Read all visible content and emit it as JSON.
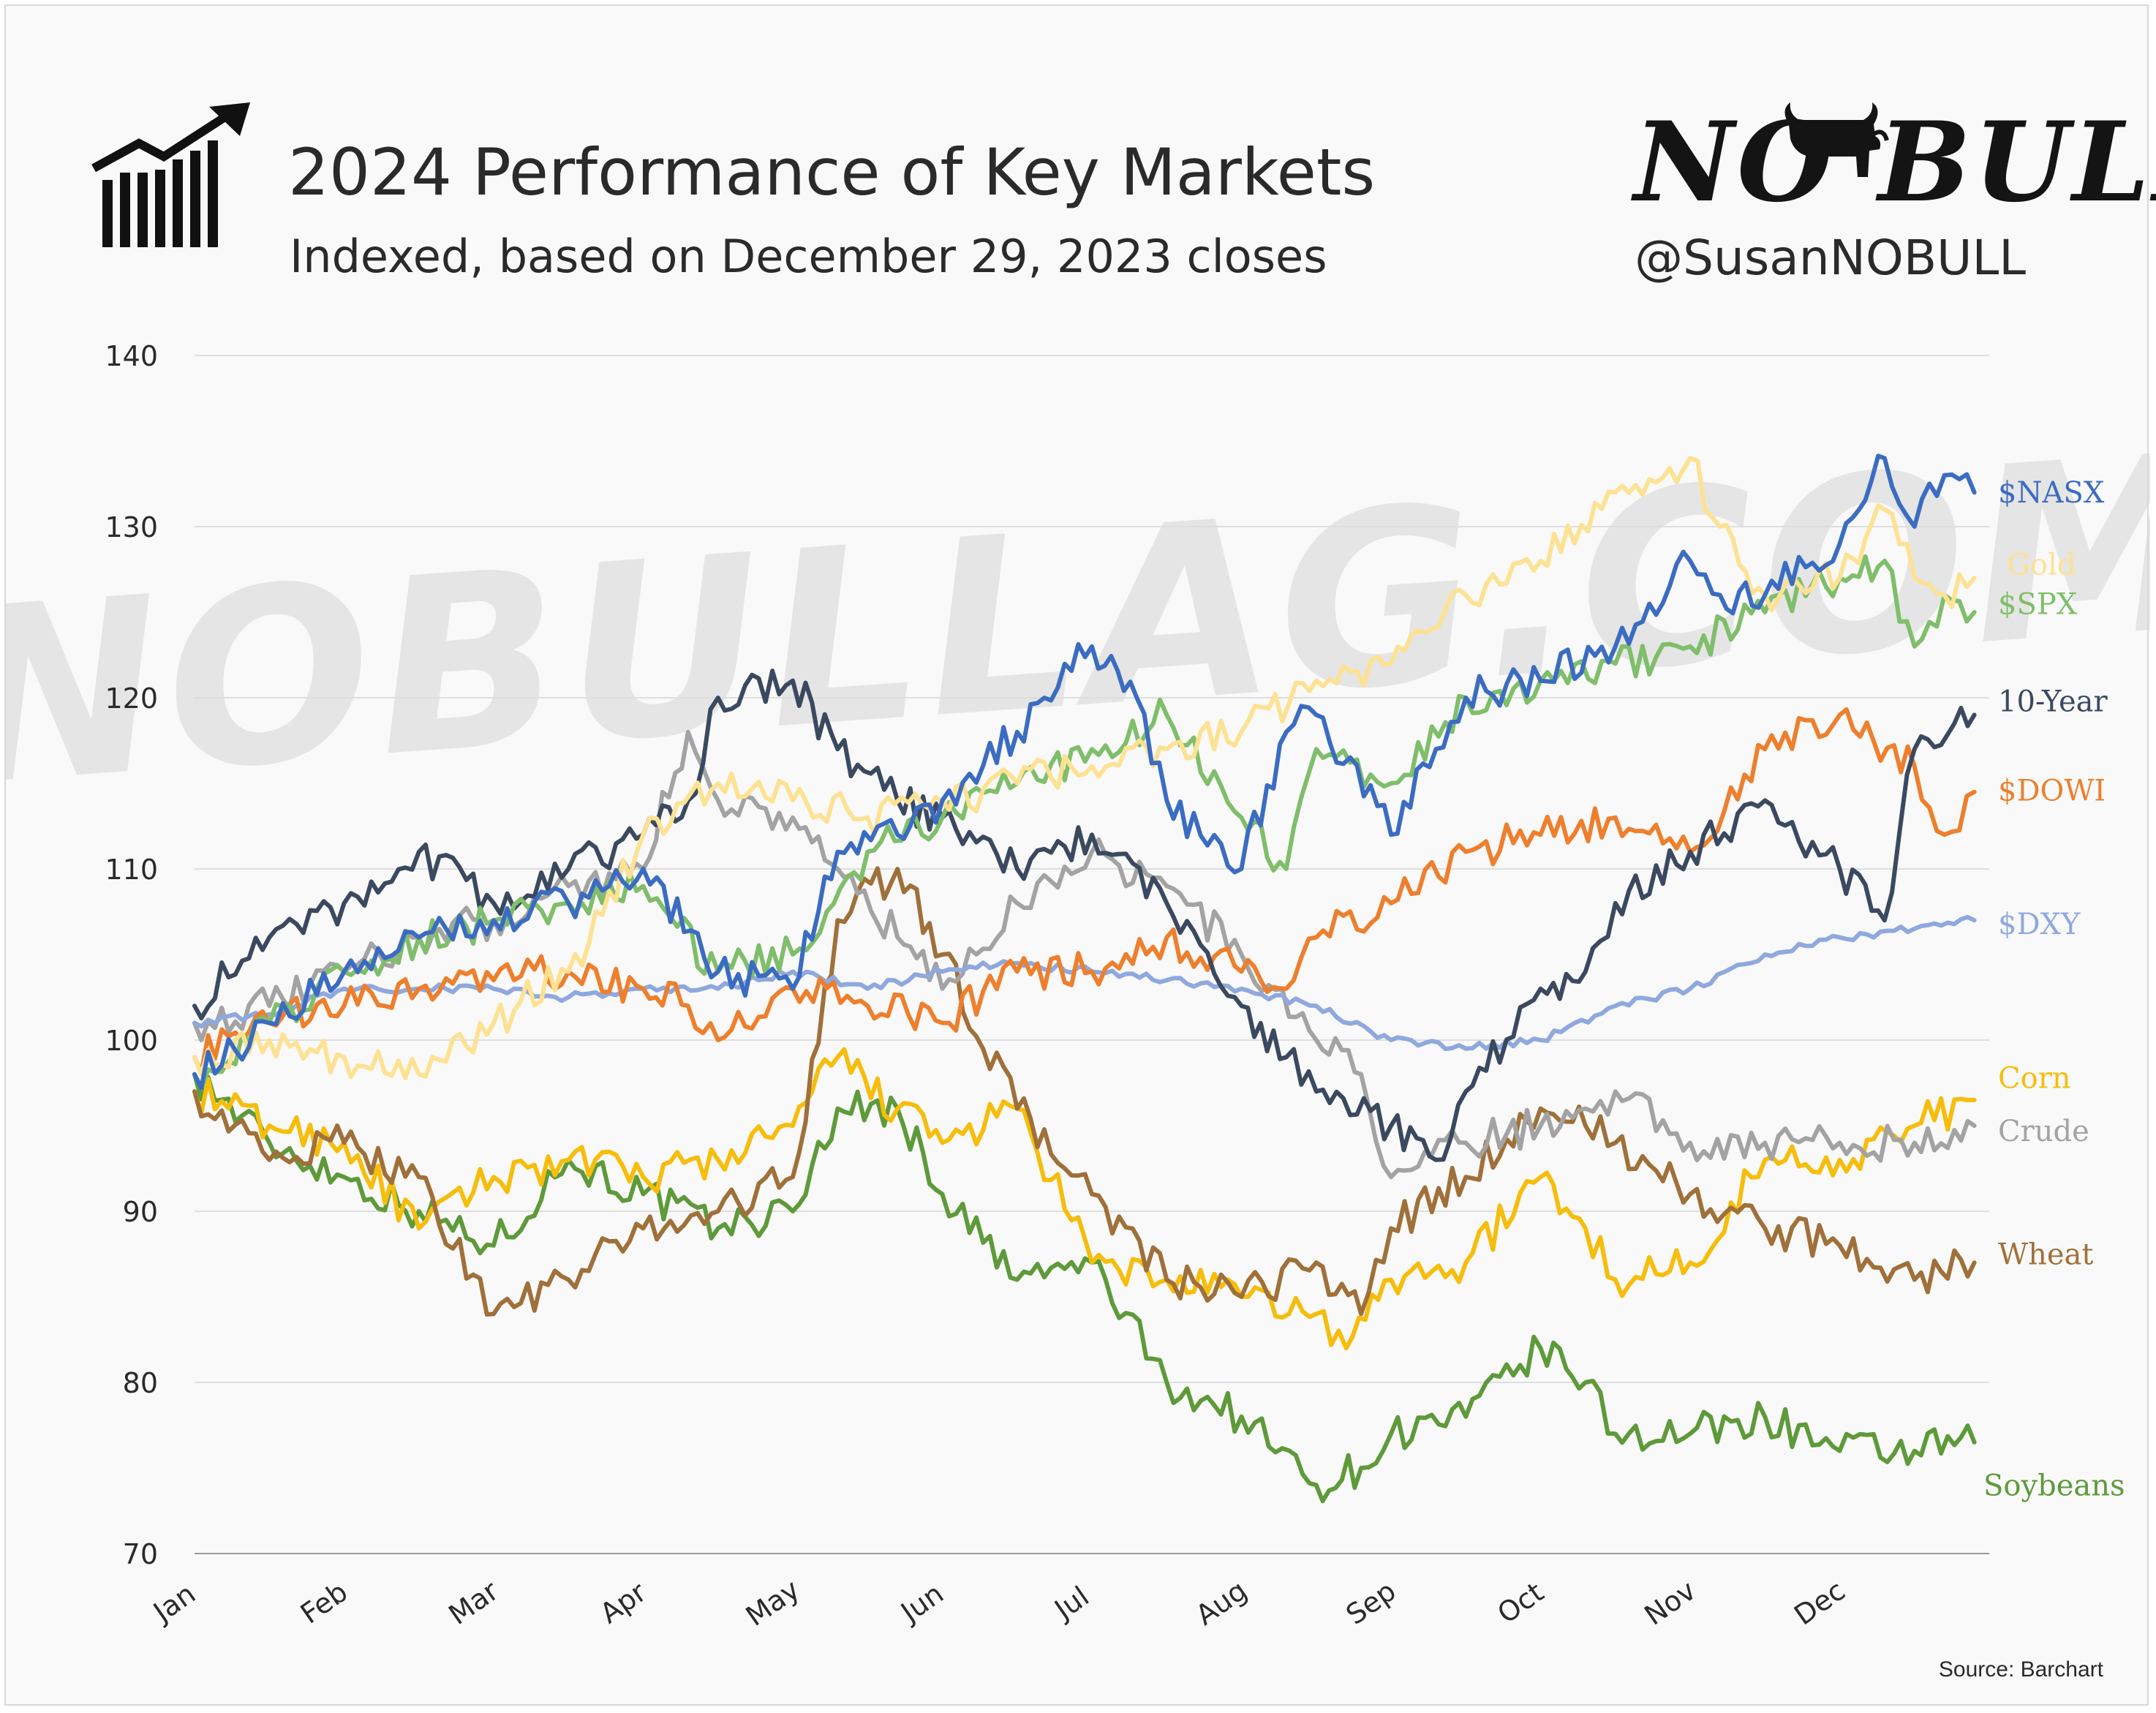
{
  "header": {
    "title": "2024 Performance of Key Markets",
    "subtitle": "Indexed, based on December 29, 2023 closes",
    "logo_left": "NO",
    "logo_right": "BULL",
    "handle": "@SusanNOBULL",
    "icon": "bar-chart-up-arrow-icon",
    "logo_icon": "bull-icon"
  },
  "watermark": "NOBULLAG.COM",
  "source": "Source: Barchart",
  "chart_data": {
    "type": "line",
    "title": "2024 Performance of Key Markets",
    "subtitle": "Indexed, based on December 29, 2023 closes",
    "ylim": [
      70,
      140
    ],
    "yticks": [
      70,
      80,
      90,
      100,
      110,
      120,
      130,
      140
    ],
    "xlim": [
      0,
      12
    ],
    "xticks": [
      {
        "label": "Jan",
        "x": 0
      },
      {
        "label": "Feb",
        "x": 1
      },
      {
        "label": "Mar",
        "x": 2
      },
      {
        "label": "Apr",
        "x": 3
      },
      {
        "label": "May",
        "x": 4
      },
      {
        "label": "Jun",
        "x": 5
      },
      {
        "label": "Jul",
        "x": 6
      },
      {
        "label": "Aug",
        "x": 7
      },
      {
        "label": "Sep",
        "x": 8
      },
      {
        "label": "Oct",
        "x": 9
      },
      {
        "label": "Nov",
        "x": 10
      },
      {
        "label": "Dec",
        "x": 11
      }
    ],
    "grid": true,
    "legend": "direct labels at right end of lines",
    "series": [
      {
        "name": "Soybeans",
        "color": "#5e9a3a",
        "x": [
          0,
          0.5,
          1,
          1.5,
          2,
          2.5,
          3,
          3.5,
          4,
          4.3,
          4.7,
          5,
          5.5,
          6,
          6.5,
          7,
          7.5,
          7.8,
          8,
          8.5,
          9,
          9.3,
          9.5,
          10,
          10.5,
          11,
          11.5,
          11.9
        ],
        "y": [
          98,
          94,
          92,
          90,
          88,
          93,
          91,
          89,
          90,
          96,
          96,
          91,
          86,
          87,
          80,
          78,
          74,
          75,
          77,
          78,
          82,
          80,
          77,
          77,
          78,
          76,
          76,
          76.5
        ]
      },
      {
        "name": "Corn",
        "color": "#f7bd0c",
        "x": [
          0,
          0.5,
          1,
          1.5,
          2,
          2.5,
          3,
          3.5,
          4,
          4.3,
          4.7,
          5,
          5.5,
          6,
          6.5,
          7,
          7.5,
          7.7,
          8,
          8.5,
          9,
          9.3,
          9.5,
          10,
          10.5,
          11,
          11.5,
          11.9
        ],
        "y": [
          97,
          95,
          94,
          89,
          92,
          93,
          92,
          93,
          95,
          99,
          96,
          94,
          96,
          87,
          86,
          85,
          84,
          82,
          86,
          87,
          92,
          89,
          86,
          87,
          93,
          93,
          95,
          96.5
        ]
      },
      {
        "name": "Wheat",
        "color": "#a0703a",
        "x": [
          0,
          0.5,
          1,
          1.5,
          2,
          2.5,
          3,
          3.5,
          4,
          4.3,
          4.7,
          5,
          5.5,
          6,
          6.5,
          7,
          7.5,
          7.8,
          8,
          8.5,
          9,
          9.3,
          9.5,
          10,
          10.5,
          11,
          11.5,
          11.9
        ],
        "y": [
          97,
          93,
          94,
          92,
          84,
          86,
          89,
          90,
          92,
          107,
          110,
          105,
          96,
          91,
          86,
          85,
          87,
          84,
          89,
          92,
          96,
          95,
          94,
          91,
          89,
          88,
          86,
          87
        ]
      },
      {
        "name": "Crude",
        "color": "#a3a3a3",
        "x": [
          0,
          0.5,
          1,
          1.5,
          2,
          2.5,
          3,
          3.3,
          3.5,
          4,
          4.3,
          4.7,
          5,
          5.5,
          6,
          6.5,
          7,
          7.5,
          7.8,
          8,
          8.5,
          9,
          9.3,
          9.5,
          10,
          10.5,
          11,
          11.5,
          11.9
        ],
        "y": [
          101,
          102,
          104,
          106,
          107,
          109,
          110,
          118,
          114,
          113,
          110,
          106,
          103,
          108,
          111,
          109,
          105,
          100,
          98,
          92,
          94,
          95,
          96,
          97,
          94,
          94,
          94,
          94,
          95
        ]
      },
      {
        "name": "$DXY",
        "color": "#8fa8de",
        "x": [
          0,
          0.5,
          1,
          1.5,
          2,
          2.5,
          3,
          3.5,
          4,
          4.5,
          5,
          5.5,
          6,
          6.5,
          7,
          7.5,
          8,
          8.5,
          9,
          9.5,
          10,
          10.5,
          11,
          11.5,
          11.9
        ],
        "y": [
          101,
          101.5,
          103,
          103,
          103,
          102.5,
          103,
          103,
          104,
          103,
          104,
          104.5,
          104,
          103.5,
          103,
          102,
          100,
          99.5,
          100,
          102,
          103,
          105,
          106,
          106.5,
          107
        ]
      },
      {
        "name": "$DOWI",
        "color": "#ee7f2d",
        "x": [
          0,
          0.5,
          1,
          1.5,
          2,
          2.5,
          3,
          3.3,
          3.5,
          4,
          4.5,
          5,
          5.5,
          6,
          6.5,
          7,
          7.3,
          7.5,
          8,
          8.5,
          9,
          9.5,
          10,
          10.5,
          11,
          11.5,
          11.7,
          11.9
        ],
        "y": [
          99,
          101,
          102,
          103,
          103.5,
          104,
          103,
          102,
          100,
          103,
          102,
          101,
          104,
          104,
          106,
          104,
          103,
          106,
          108,
          111,
          112,
          113,
          111,
          117,
          119,
          116,
          112,
          114.5
        ]
      },
      {
        "name": "10-Year",
        "color": "#3b4960",
        "x": [
          0,
          0.5,
          1,
          1.5,
          2,
          2.5,
          3,
          3.3,
          3.5,
          4,
          4.3,
          4.7,
          5,
          5.5,
          6,
          6.5,
          7,
          7.3,
          7.5,
          8,
          8.3,
          8.5,
          9,
          9.3,
          9.5,
          10,
          10.5,
          11,
          11.3,
          11.5,
          11.9
        ],
        "y": [
          102,
          106,
          108,
          111,
          108,
          110,
          112,
          114,
          120,
          121,
          117,
          114,
          113,
          110,
          112,
          108,
          102,
          99,
          97,
          95,
          93,
          97,
          103,
          104,
          108,
          111,
          114,
          110,
          107,
          117,
          119
        ]
      },
      {
        "name": "$SPX",
        "color": "#7fbe6a",
        "x": [
          0,
          0.5,
          1,
          1.5,
          2,
          2.5,
          3,
          3.5,
          4,
          4.5,
          5,
          5.5,
          6,
          6.5,
          7,
          7.3,
          7.5,
          8,
          8.5,
          9,
          9.5,
          10,
          10.5,
          11,
          11.3,
          11.5,
          11.7,
          11.9
        ],
        "y": [
          98,
          101,
          104,
          106,
          107,
          108,
          109,
          104,
          105,
          111,
          113,
          115,
          117,
          119,
          113,
          110,
          117,
          115,
          120,
          121,
          122,
          123,
          125,
          127,
          128,
          123,
          126,
          125
        ]
      },
      {
        "name": "Gold",
        "color": "#fde293",
        "x": [
          0,
          0.5,
          1,
          1.5,
          2,
          2.5,
          3,
          3.5,
          4,
          4.5,
          5,
          5.5,
          6,
          6.5,
          7,
          7.5,
          8,
          8.5,
          9,
          9.5,
          10,
          10.2,
          10.5,
          11,
          11.3,
          11.5,
          11.7,
          11.9
        ],
        "y": [
          99,
          100,
          99,
          98,
          101,
          104,
          112,
          115,
          114,
          113,
          114,
          115,
          116,
          117,
          118,
          121,
          122,
          126,
          128,
          132,
          134,
          130,
          126,
          127,
          131,
          127,
          126,
          127
        ]
      },
      {
        "name": "$NASX",
        "color": "#3b6cc2",
        "x": [
          0,
          0.5,
          1,
          1.5,
          2,
          2.5,
          3,
          3.5,
          4,
          4.3,
          4.7,
          5,
          5.5,
          6,
          6.3,
          6.5,
          7,
          7.3,
          7.5,
          8,
          8.3,
          8.5,
          9,
          9.5,
          10,
          10.2,
          10.5,
          11,
          11.3,
          11.5,
          11.7,
          11.9
        ],
        "y": [
          98,
          101,
          104,
          106,
          107,
          108,
          110,
          104,
          103,
          111,
          112,
          114,
          118,
          123,
          120,
          114,
          110,
          118,
          119,
          112,
          117,
          120,
          121,
          123,
          128,
          126,
          126,
          129,
          134,
          130,
          133,
          132
        ]
      }
    ]
  }
}
